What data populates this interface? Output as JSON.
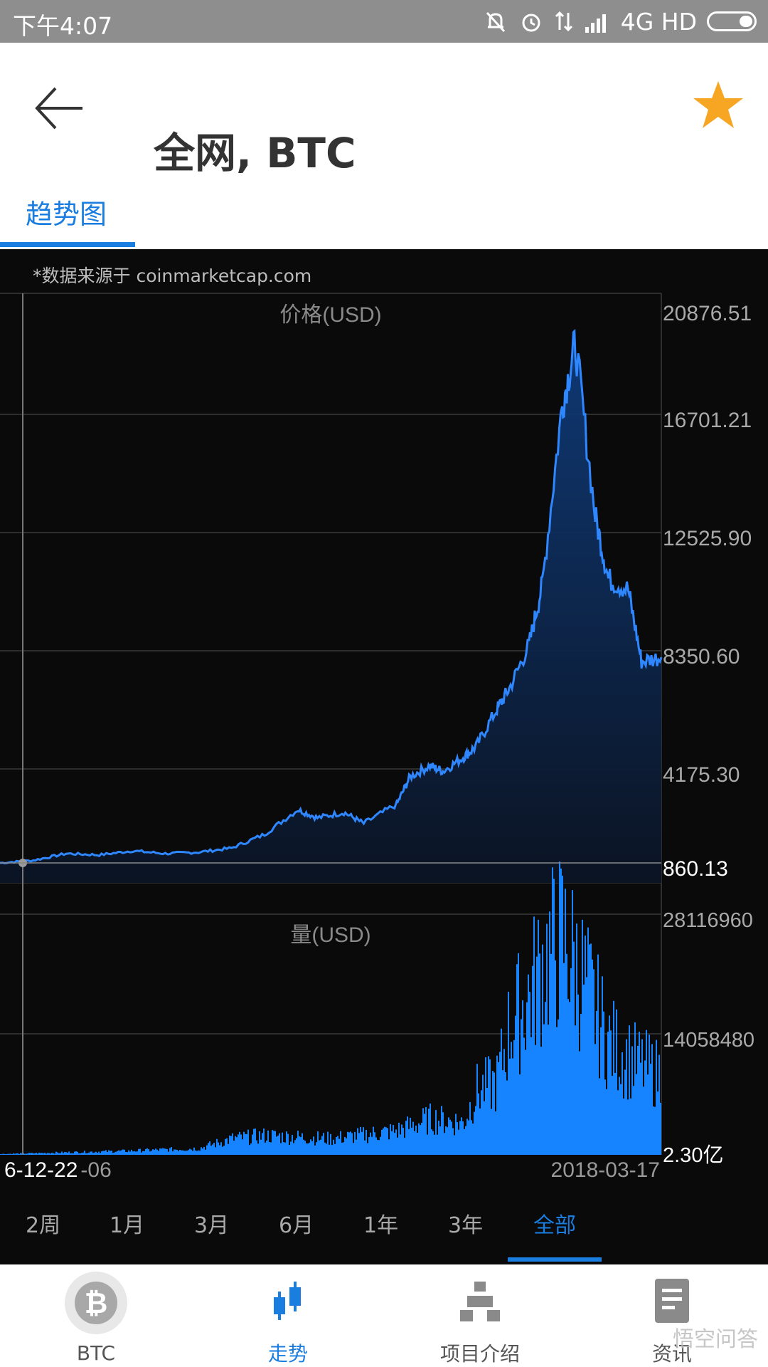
{
  "status_bar": {
    "time": "下午4:07",
    "network": "4G HD"
  },
  "header": {
    "title": "全网, BTC",
    "tab": "趋势图"
  },
  "chart": {
    "source_note": "*数据来源于 coinmarketcap.com",
    "price_label": "价格(USD)",
    "volume_label": "量(USD)",
    "date_start": "6-12-22",
    "date_start_suffix": "-06",
    "date_end": "2018-03-17"
  },
  "chart_data": {
    "type": "area",
    "price": {
      "ylabel": "价格(USD)",
      "y_ticks": [
        "20876.51",
        "16701.21",
        "12525.90",
        "8350.60",
        "4175.30"
      ],
      "current_value": "860.13",
      "ylim": [
        0,
        20876.51
      ],
      "x": [
        0,
        5,
        10,
        15,
        20,
        25,
        30,
        35,
        40,
        45,
        48,
        52,
        55,
        60,
        62,
        65,
        67,
        70,
        72,
        75,
        77,
        80,
        82,
        85,
        87,
        90,
        92,
        95,
        97,
        100
      ],
      "values": [
        860,
        950,
        1200,
        1150,
        1300,
        1200,
        1250,
        1400,
        1900,
        2800,
        2500,
        2700,
        2300,
        3000,
        4000,
        4400,
        4200,
        4700,
        5100,
        6400,
        7200,
        8800,
        11000,
        17500,
        19800,
        13500,
        11200,
        10800,
        8200,
        8350
      ]
    },
    "volume": {
      "ylabel": "量(USD)",
      "y_ticks": [
        "28116960",
        "14058480",
        "2.30亿"
      ],
      "x": [
        0,
        10,
        20,
        30,
        35,
        40,
        45,
        50,
        55,
        60,
        65,
        70,
        72,
        75,
        77,
        80,
        82,
        85,
        88,
        90,
        92,
        95,
        97,
        100
      ],
      "values": [
        0.1,
        0.3,
        0.5,
        0.8,
        2,
        2.4,
        2.2,
        2.0,
        2.5,
        3.0,
        4.5,
        4.0,
        8,
        9,
        16,
        20,
        24,
        27,
        22,
        18,
        14,
        12,
        11,
        10
      ]
    }
  },
  "range_tabs": [
    "2周",
    "1月",
    "3月",
    "6月",
    "1年",
    "3年",
    "全部"
  ],
  "active_range": "全部",
  "bottom_nav": [
    {
      "label": "BTC",
      "icon": "bitcoin-icon"
    },
    {
      "label": "走势",
      "icon": "candlestick-icon"
    },
    {
      "label": "项目介绍",
      "icon": "org-chart-icon"
    },
    {
      "label": "资讯",
      "icon": "document-icon"
    }
  ],
  "watermark": "悟空问答",
  "colors": {
    "accent": "#1a7de0",
    "chart_line": "#2f87ff",
    "volume_fill": "#1684ff",
    "star": "#f6a623"
  }
}
